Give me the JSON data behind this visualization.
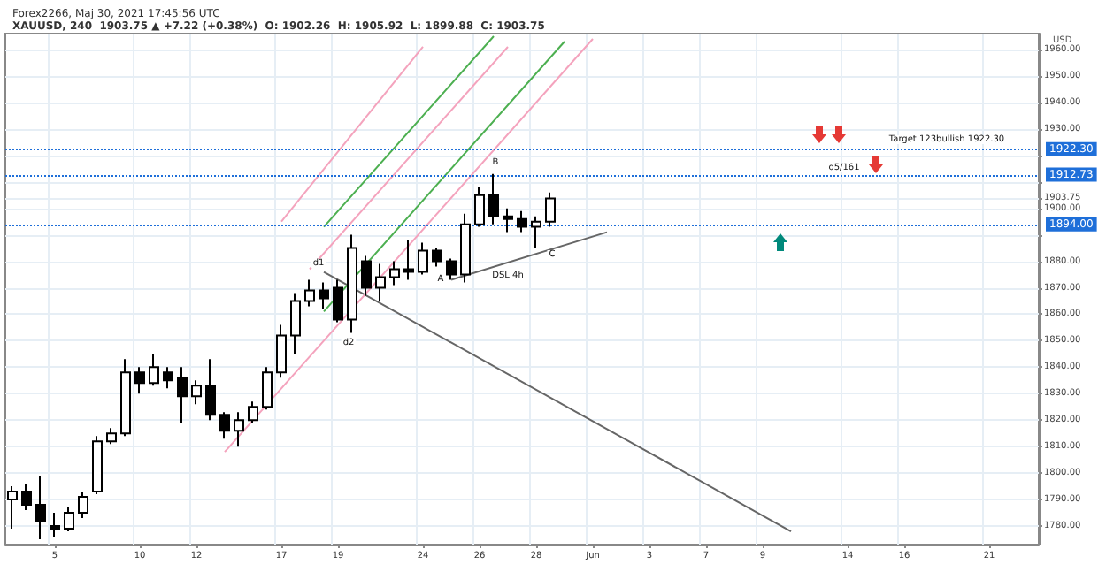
{
  "chart_data": {
    "type": "candlestick",
    "title": "Forex2266, Maj 30, 2021 17:45:56 UTC",
    "subtitle": "XAUUSD, 240  1903.75 ▲ +7.22 (+0.38%)  O: 1902.26  H: 1905.92  L: 1899.88  C: 1903.75",
    "ylabel": "USD",
    "categories": [
      null,
      null,
      null,
      "5",
      null,
      null,
      null,
      null,
      null,
      "10",
      null,
      null,
      null,
      "12",
      null,
      null,
      null,
      null,
      null,
      "17",
      null,
      null,
      null,
      "19",
      null,
      null,
      null,
      null,
      null,
      "24",
      null,
      null,
      null,
      "26",
      null,
      null,
      null,
      "28",
      null,
      null,
      null,
      "Jun",
      null,
      null,
      null,
      "3",
      null,
      null,
      null,
      "7",
      null,
      null,
      null,
      "9",
      null,
      null,
      null,
      null,
      null,
      "14",
      null,
      null,
      null,
      "16",
      null,
      null,
      null,
      null,
      null,
      "21",
      null,
      null,
      null
    ],
    "ylim": [
      1773,
      1966
    ],
    "yticks": [
      {
        "value": 1780,
        "label": "1780.00"
      },
      {
        "value": 1790,
        "label": "1790.00"
      },
      {
        "value": 1800,
        "label": "1800.00"
      },
      {
        "value": 1810,
        "label": "1810.00"
      },
      {
        "value": 1820,
        "label": "1820.00"
      },
      {
        "value": 1830,
        "label": "1830.00"
      },
      {
        "value": 1840,
        "label": "1840.00"
      },
      {
        "value": 1850,
        "label": "1850.00"
      },
      {
        "value": 1860,
        "label": "1860.00"
      },
      {
        "value": 1870,
        "label": "1870.00"
      },
      {
        "value": 1880,
        "label": "1880.00"
      },
      {
        "value": 1890,
        "label": null
      },
      {
        "value": 1900,
        "label": "1900.00"
      },
      {
        "value": 1903.75,
        "label": "1903.75"
      },
      {
        "value": 1910,
        "label": null
      },
      {
        "value": 1920,
        "label": null
      },
      {
        "value": 1930,
        "label": "1930.00"
      },
      {
        "value": 1940,
        "label": "1940.00"
      },
      {
        "value": 1950,
        "label": "1950.00"
      },
      {
        "value": 1960,
        "label": "1960.00"
      }
    ],
    "grid": true,
    "series": [
      {
        "color": "#000000",
        "ohlc": [
          [
            1790,
            1795,
            1779,
            1793
          ],
          [
            1793,
            1796,
            1786,
            1788
          ],
          [
            1788,
            1799,
            1775,
            1782
          ],
          [
            1780,
            1785,
            1776,
            1779
          ],
          [
            1779,
            1787,
            1778,
            1785
          ],
          [
            1785,
            1793,
            1783,
            1791
          ],
          [
            1793,
            1814,
            1792,
            1812
          ],
          [
            1812,
            1817,
            1811,
            1815
          ],
          [
            1815,
            1843,
            1814,
            1838
          ],
          [
            1838,
            1840,
            1830,
            1834
          ],
          [
            1834,
            1845,
            1833,
            1840
          ],
          [
            1838,
            1840,
            1832,
            1835
          ],
          [
            1836,
            1840,
            1819,
            1829
          ],
          [
            1829,
            1835,
            1826,
            1833
          ],
          [
            1833,
            1843,
            1820,
            1822
          ],
          [
            1822,
            1823,
            1813,
            1816
          ],
          [
            1816,
            1823,
            1810,
            1820
          ],
          [
            1820,
            1827,
            1819,
            1825
          ],
          [
            1825,
            1840,
            1824,
            1838
          ],
          [
            1838,
            1856,
            1836,
            1852
          ],
          [
            1852,
            1868,
            1845,
            1865
          ],
          [
            1865,
            1873,
            1863,
            1869
          ],
          [
            1869,
            1872,
            1862,
            1866
          ],
          [
            1870,
            1873,
            1857,
            1858
          ],
          [
            1858,
            1890,
            1853,
            1885
          ],
          [
            1880,
            1882,
            1867,
            1870
          ],
          [
            1870,
            1879,
            1865,
            1874
          ],
          [
            1874,
            1880,
            1871,
            1877
          ],
          [
            1877,
            1888,
            1873,
            1876
          ],
          [
            1876,
            1887,
            1875,
            1884
          ],
          [
            1884,
            1885,
            1878,
            1880
          ],
          [
            1880,
            1881,
            1873,
            1875
          ],
          [
            1875,
            1898,
            1872,
            1894
          ],
          [
            1894,
            1908,
            1893,
            1905
          ],
          [
            1905,
            1913,
            1894,
            1897
          ],
          [
            1897,
            1900,
            1891,
            1896
          ],
          [
            1896,
            1899,
            1891,
            1893
          ],
          [
            1893,
            1897,
            1885,
            1895
          ],
          [
            1895,
            1906,
            1893,
            1903.75
          ],
          null,
          null,
          null,
          null,
          null,
          null,
          null,
          null,
          null,
          null,
          null,
          null,
          null,
          null,
          null,
          null,
          null,
          null,
          null,
          null,
          null,
          null,
          null,
          null,
          null,
          null,
          null,
          null,
          null,
          null,
          null,
          null,
          null,
          null
        ]
      },
      {
        "type": "line",
        "color": "#666666",
        "values": [
          null,
          null,
          null,
          null,
          null,
          null,
          null,
          null,
          null,
          null,
          null,
          null,
          null,
          null,
          null,
          null,
          null,
          null,
          null,
          null,
          null,
          null,
          1876,
          null,
          null,
          null,
          null,
          null,
          null,
          null,
          null,
          null,
          null,
          null,
          null,
          null,
          null,
          null,
          null,
          null,
          null,
          null,
          null,
          null,
          null,
          null,
          null,
          null,
          null,
          null,
          null,
          null,
          null,
          null,
          null,
          1778,
          null,
          null,
          null,
          null,
          null,
          null,
          null,
          null,
          null,
          null,
          null,
          null,
          null,
          null,
          null,
          null,
          null
        ]
      },
      {
        "type": "line",
        "color": "#666666",
        "values": [
          null,
          null,
          null,
          null,
          null,
          null,
          null,
          null,
          null,
          null,
          null,
          null,
          null,
          null,
          null,
          null,
          null,
          null,
          null,
          null,
          null,
          null,
          null,
          null,
          null,
          null,
          null,
          null,
          null,
          null,
          null,
          1873,
          null,
          null,
          null,
          null,
          null,
          null,
          null,
          null,
          null,
          null,
          1891,
          null,
          null,
          null,
          null,
          null,
          null,
          null,
          null,
          null,
          null,
          null,
          null,
          null,
          null,
          null,
          null,
          null,
          null,
          null,
          null,
          null,
          null,
          null,
          null,
          null,
          null,
          null,
          null,
          null,
          null
        ]
      },
      {
        "type": "line",
        "color": "#f4a3bd",
        "values": [
          null,
          null,
          null,
          null,
          null,
          null,
          null,
          null,
          null,
          null,
          null,
          null,
          null,
          null,
          null,
          1808,
          null,
          null,
          null,
          null,
          null,
          null,
          null,
          null,
          null,
          null,
          null,
          null,
          null,
          null,
          null,
          null,
          null,
          null,
          null,
          null,
          null,
          null,
          null,
          null,
          null,
          1964,
          null,
          null,
          null,
          null,
          null,
          null,
          null,
          null,
          null,
          null,
          null,
          null,
          null,
          null,
          null,
          null,
          null,
          null,
          null,
          null,
          null,
          null,
          null,
          null,
          null,
          null,
          null,
          null,
          null,
          null,
          null
        ]
      },
      {
        "type": "line",
        "color": "#4caf50",
        "values": [
          null,
          null,
          null,
          null,
          null,
          null,
          null,
          null,
          null,
          null,
          null,
          null,
          null,
          null,
          null,
          null,
          null,
          null,
          null,
          null,
          null,
          null,
          1861,
          null,
          null,
          null,
          null,
          null,
          null,
          null,
          null,
          null,
          null,
          null,
          null,
          null,
          null,
          null,
          null,
          1963,
          null,
          null,
          null,
          null,
          null,
          null,
          null,
          null,
          null,
          null,
          null,
          null,
          null,
          null,
          null,
          null,
          null,
          null,
          null,
          null,
          null,
          null,
          null,
          null,
          null,
          null,
          null,
          null,
          null,
          null,
          null,
          null,
          null
        ]
      },
      {
        "type": "line",
        "color": "#f4a3bd",
        "values": [
          null,
          null,
          null,
          null,
          null,
          null,
          null,
          null,
          null,
          null,
          null,
          null,
          null,
          null,
          null,
          null,
          null,
          null,
          null,
          null,
          null,
          1877,
          null,
          null,
          null,
          null,
          null,
          null,
          null,
          null,
          null,
          null,
          null,
          null,
          null,
          1961,
          null,
          null,
          null,
          null,
          null,
          null,
          null,
          null,
          null,
          null,
          null,
          null,
          null,
          null,
          null,
          null,
          null,
          null,
          null,
          null,
          null,
          null,
          null,
          null,
          null,
          null,
          null,
          null,
          null,
          null,
          null,
          null,
          null,
          null,
          null,
          null,
          null
        ]
      },
      {
        "type": "line",
        "color": "#4caf50",
        "values": [
          null,
          null,
          null,
          null,
          null,
          null,
          null,
          null,
          null,
          null,
          null,
          null,
          null,
          null,
          null,
          null,
          null,
          null,
          null,
          null,
          null,
          null,
          1893,
          null,
          null,
          null,
          null,
          null,
          null,
          null,
          null,
          null,
          null,
          null,
          1965,
          null,
          null,
          null,
          null,
          null,
          null,
          null,
          null,
          null,
          null,
          null,
          null,
          null,
          null,
          null,
          null,
          null,
          null,
          null,
          null,
          null,
          null,
          null,
          null,
          null,
          null,
          null,
          null,
          null,
          null,
          null,
          null,
          null,
          null,
          null,
          null,
          null,
          null
        ]
      },
      {
        "type": "line",
        "color": "#f4a3bd",
        "values": [
          null,
          null,
          null,
          null,
          null,
          null,
          null,
          null,
          null,
          null,
          null,
          null,
          null,
          null,
          null,
          null,
          null,
          null,
          null,
          1895,
          null,
          null,
          null,
          null,
          null,
          null,
          null,
          null,
          null,
          1961,
          null,
          null,
          null,
          null,
          null,
          null,
          null,
          null,
          null,
          null,
          null,
          null,
          null,
          null,
          null,
          null,
          null,
          null,
          null,
          null,
          null,
          null,
          null,
          null,
          null,
          null,
          null,
          null,
          null,
          null,
          null,
          null,
          null,
          null,
          null,
          null,
          null,
          null,
          null,
          null,
          null,
          null,
          null
        ]
      }
    ],
    "ref_lines": [
      {
        "axis": "y",
        "value": 1922.3,
        "label": "1922.30",
        "color": "#1e6fd9",
        "line_style": "dotted"
      },
      {
        "axis": "y",
        "value": 1912.73,
        "label": "1912.73",
        "color": "#1e6fd9",
        "line_style": "dotted"
      },
      {
        "axis": "y",
        "value": 1894,
        "label": "1894.00",
        "color": "#1e6fd9",
        "line_style": "dotted"
      }
    ],
    "annotations": [
      "Target 123bullish 1922.30",
      "d5/161",
      "B",
      "C",
      "A",
      "d1",
      "d2",
      "DSL 4h"
    ]
  }
}
